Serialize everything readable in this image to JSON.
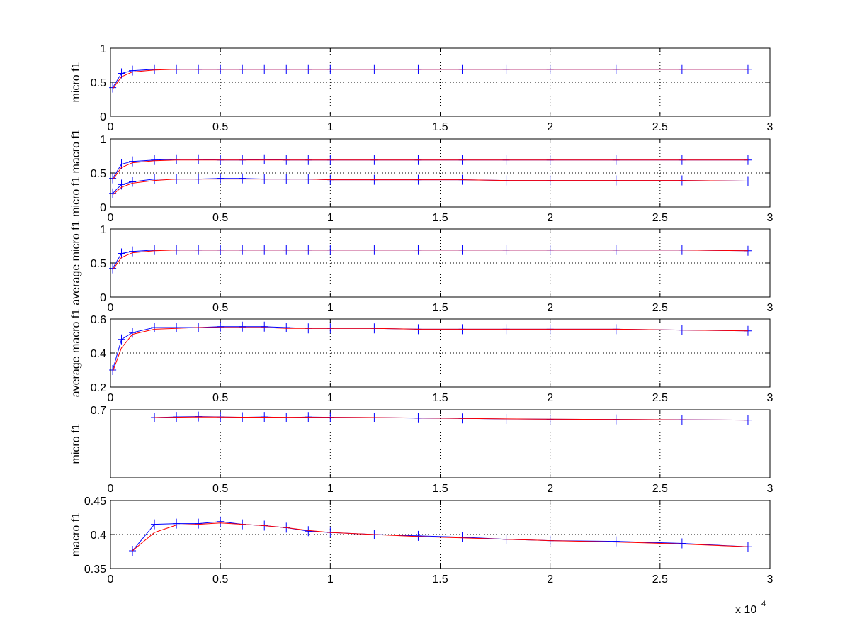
{
  "figure": {
    "x_multiplier_base": "x 10",
    "x_multiplier_exponent": "4"
  },
  "chart_data": [
    {
      "type": "line",
      "ylabel": "micro f1",
      "xlim": [
        0,
        3
      ],
      "ylim": [
        0,
        1
      ],
      "x_ticks": [
        "0",
        "0.5",
        "1",
        "1.5",
        "2",
        "2.5",
        "3"
      ],
      "y_ticks": [
        {
          "v": 0,
          "label": "0"
        },
        {
          "v": 0.5,
          "label": "0.5"
        },
        {
          "v": 1,
          "label": "1"
        }
      ],
      "grid": true,
      "series": [
        {
          "color": "#0000ff",
          "marker": "+",
          "x": [
            0.01,
            0.05,
            0.1,
            0.2,
            0.3,
            0.4,
            0.5,
            0.6,
            0.7,
            0.8,
            0.9,
            1.0,
            1.2,
            1.4,
            1.6,
            1.8,
            2.0,
            2.3,
            2.6,
            2.9
          ],
          "y": [
            0.42,
            0.63,
            0.67,
            0.69,
            0.69,
            0.69,
            0.69,
            0.69,
            0.69,
            0.69,
            0.69,
            0.69,
            0.69,
            0.69,
            0.69,
            0.69,
            0.69,
            0.69,
            0.69,
            0.69
          ]
        },
        {
          "color": "#ff0000",
          "marker": "",
          "x": [
            0.01,
            0.05,
            0.1,
            0.2,
            0.3,
            0.4,
            0.5,
            0.6,
            0.7,
            0.8,
            0.9,
            1.0,
            1.2,
            1.4,
            1.6,
            1.8,
            2.0,
            2.3,
            2.6,
            2.9
          ],
          "y": [
            0.4,
            0.58,
            0.65,
            0.68,
            0.69,
            0.69,
            0.69,
            0.69,
            0.69,
            0.69,
            0.69,
            0.69,
            0.69,
            0.69,
            0.69,
            0.69,
            0.69,
            0.69,
            0.69,
            0.69
          ]
        }
      ]
    },
    {
      "type": "line",
      "ylabel": "micro f1 macro f1",
      "xlim": [
        0,
        3
      ],
      "ylim": [
        0,
        1
      ],
      "x_ticks": [
        "0",
        "0.5",
        "1",
        "1.5",
        "2",
        "2.5",
        "3"
      ],
      "y_ticks": [
        {
          "v": 0,
          "label": "0"
        },
        {
          "v": 0.5,
          "label": "0.5"
        },
        {
          "v": 1,
          "label": "1"
        }
      ],
      "grid": true,
      "series": [
        {
          "color": "#0000ff",
          "marker": "+",
          "x": [
            0.01,
            0.05,
            0.1,
            0.2,
            0.3,
            0.4,
            0.5,
            0.6,
            0.7,
            0.8,
            0.9,
            1.0,
            1.2,
            1.4,
            1.6,
            1.8,
            2.0,
            2.3,
            2.6,
            2.9
          ],
          "y": [
            0.42,
            0.63,
            0.67,
            0.69,
            0.7,
            0.7,
            0.69,
            0.69,
            0.7,
            0.69,
            0.69,
            0.69,
            0.69,
            0.69,
            0.69,
            0.69,
            0.69,
            0.69,
            0.69,
            0.69
          ]
        },
        {
          "color": "#ff0000",
          "marker": "",
          "x": [
            0.01,
            0.05,
            0.1,
            0.2,
            0.3,
            0.4,
            0.5,
            0.6,
            0.7,
            0.8,
            0.9,
            1.0,
            1.2,
            1.4,
            1.6,
            1.8,
            2.0,
            2.3,
            2.6,
            2.9
          ],
          "y": [
            0.4,
            0.58,
            0.65,
            0.68,
            0.69,
            0.69,
            0.69,
            0.69,
            0.69,
            0.69,
            0.69,
            0.69,
            0.69,
            0.69,
            0.69,
            0.69,
            0.69,
            0.69,
            0.69,
            0.69
          ]
        },
        {
          "color": "#0000ff",
          "marker": "+",
          "x": [
            0.01,
            0.05,
            0.1,
            0.2,
            0.3,
            0.4,
            0.5,
            0.6,
            0.7,
            0.8,
            0.9,
            1.0,
            1.2,
            1.4,
            1.6,
            1.8,
            2.0,
            2.3,
            2.6,
            2.9
          ],
          "y": [
            0.2,
            0.33,
            0.37,
            0.41,
            0.41,
            0.41,
            0.42,
            0.42,
            0.41,
            0.41,
            0.41,
            0.4,
            0.4,
            0.4,
            0.4,
            0.39,
            0.39,
            0.39,
            0.39,
            0.38
          ]
        },
        {
          "color": "#ff0000",
          "marker": "",
          "x": [
            0.01,
            0.05,
            0.1,
            0.2,
            0.3,
            0.4,
            0.5,
            0.6,
            0.7,
            0.8,
            0.9,
            1.0,
            1.2,
            1.4,
            1.6,
            1.8,
            2.0,
            2.3,
            2.6,
            2.9
          ],
          "y": [
            0.18,
            0.29,
            0.35,
            0.39,
            0.41,
            0.41,
            0.41,
            0.41,
            0.41,
            0.41,
            0.41,
            0.4,
            0.4,
            0.4,
            0.4,
            0.39,
            0.39,
            0.39,
            0.39,
            0.38
          ]
        }
      ]
    },
    {
      "type": "line",
      "ylabel": "average micro f1",
      "xlim": [
        0,
        3
      ],
      "ylim": [
        0,
        1
      ],
      "x_ticks": [
        "0",
        "0.5",
        "1",
        "1.5",
        "2",
        "2.5",
        "3"
      ],
      "y_ticks": [
        {
          "v": 0,
          "label": "0"
        },
        {
          "v": 0.5,
          "label": "0.5"
        },
        {
          "v": 1,
          "label": "1"
        }
      ],
      "grid": true,
      "series": [
        {
          "color": "#0000ff",
          "marker": "+",
          "x": [
            0.01,
            0.05,
            0.1,
            0.2,
            0.3,
            0.4,
            0.5,
            0.6,
            0.7,
            0.8,
            0.9,
            1.0,
            1.2,
            1.4,
            1.6,
            1.8,
            2.0,
            2.3,
            2.6,
            2.9
          ],
          "y": [
            0.42,
            0.64,
            0.67,
            0.69,
            0.69,
            0.69,
            0.69,
            0.69,
            0.69,
            0.69,
            0.69,
            0.69,
            0.69,
            0.69,
            0.69,
            0.69,
            0.69,
            0.69,
            0.69,
            0.68
          ]
        },
        {
          "color": "#ff0000",
          "marker": "",
          "x": [
            0.01,
            0.05,
            0.1,
            0.2,
            0.3,
            0.4,
            0.5,
            0.6,
            0.7,
            0.8,
            0.9,
            1.0,
            1.2,
            1.4,
            1.6,
            1.8,
            2.0,
            2.3,
            2.6,
            2.9
          ],
          "y": [
            0.4,
            0.58,
            0.65,
            0.68,
            0.69,
            0.69,
            0.69,
            0.69,
            0.69,
            0.69,
            0.69,
            0.69,
            0.69,
            0.69,
            0.69,
            0.69,
            0.69,
            0.69,
            0.69,
            0.68
          ]
        }
      ]
    },
    {
      "type": "line",
      "ylabel": "average macro f1",
      "xlim": [
        0,
        3
      ],
      "ylim": [
        0.2,
        0.6
      ],
      "x_ticks": [
        "0",
        "0.5",
        "1",
        "1.5",
        "2",
        "2.5",
        "3"
      ],
      "y_ticks": [
        {
          "v": 0.2,
          "label": "0.2"
        },
        {
          "v": 0.4,
          "label": "0.4"
        },
        {
          "v": 0.6,
          "label": "0.6"
        }
      ],
      "grid": true,
      "series": [
        {
          "color": "#0000ff",
          "marker": "+",
          "x": [
            0.01,
            0.05,
            0.1,
            0.2,
            0.3,
            0.4,
            0.5,
            0.6,
            0.7,
            0.8,
            0.9,
            1.0,
            1.2,
            1.4,
            1.6,
            1.8,
            2.0,
            2.3,
            2.6,
            2.9
          ],
          "y": [
            0.3,
            0.48,
            0.52,
            0.55,
            0.55,
            0.55,
            0.555,
            0.555,
            0.555,
            0.55,
            0.545,
            0.545,
            0.545,
            0.54,
            0.54,
            0.54,
            0.54,
            0.54,
            0.535,
            0.53
          ]
        },
        {
          "color": "#ff0000",
          "marker": "",
          "x": [
            0.01,
            0.05,
            0.1,
            0.2,
            0.3,
            0.4,
            0.5,
            0.6,
            0.7,
            0.8,
            0.9,
            1.0,
            1.2,
            1.4,
            1.6,
            1.8,
            2.0,
            2.3,
            2.6,
            2.9
          ],
          "y": [
            0.29,
            0.43,
            0.51,
            0.54,
            0.545,
            0.55,
            0.55,
            0.55,
            0.55,
            0.545,
            0.545,
            0.545,
            0.545,
            0.54,
            0.54,
            0.54,
            0.54,
            0.54,
            0.535,
            0.53
          ]
        }
      ]
    },
    {
      "type": "line",
      "ylabel": "micro f1",
      "xlim": [
        0,
        3
      ],
      "ylim": [
        0.6,
        0.7
      ],
      "x_ticks": [
        "0",
        "0.5",
        "1",
        "1.5",
        "2",
        "2.5",
        "3"
      ],
      "y_ticks": [
        {
          "v": 0.7,
          "label": "0.7"
        }
      ],
      "grid": true,
      "series": [
        {
          "color": "#0000ff",
          "marker": "+",
          "x": [
            0.2,
            0.3,
            0.4,
            0.5,
            0.6,
            0.7,
            0.8,
            0.9,
            1.0,
            1.2,
            1.4,
            1.6,
            1.8,
            2.0,
            2.3,
            2.6,
            2.9
          ],
          "y": [
            0.6885,
            0.6895,
            0.69,
            0.6895,
            0.689,
            0.6895,
            0.6885,
            0.6893,
            0.689,
            0.6885,
            0.6878,
            0.6872,
            0.6865,
            0.686,
            0.6858,
            0.6853,
            0.6848
          ]
        },
        {
          "color": "#ff0000",
          "marker": "",
          "x": [
            0.2,
            0.3,
            0.4,
            0.5,
            0.6,
            0.7,
            0.8,
            0.9,
            1.0,
            1.2,
            1.4,
            1.6,
            1.8,
            2.0,
            2.3,
            2.6,
            2.9
          ],
          "y": [
            0.6885,
            0.689,
            0.6895,
            0.6893,
            0.6891,
            0.6891,
            0.689,
            0.689,
            0.6889,
            0.6885,
            0.6879,
            0.6873,
            0.6866,
            0.6861,
            0.6857,
            0.6852,
            0.6848
          ]
        }
      ]
    },
    {
      "type": "line",
      "ylabel": "macro f1",
      "xlim": [
        0,
        3
      ],
      "ylim": [
        0.35,
        0.45
      ],
      "x_ticks": [
        "0",
        "0.5",
        "1",
        "1.5",
        "2",
        "2.5",
        "3"
      ],
      "y_ticks": [
        {
          "v": 0.35,
          "label": "0.35"
        },
        {
          "v": 0.4,
          "label": "0.4"
        },
        {
          "v": 0.45,
          "label": "0.45"
        }
      ],
      "grid": true,
      "x_multiplier": true,
      "series": [
        {
          "color": "#0000ff",
          "marker": "+",
          "x": [
            0.1,
            0.2,
            0.3,
            0.4,
            0.5,
            0.6,
            0.7,
            0.8,
            0.9,
            1.0,
            1.2,
            1.4,
            1.6,
            1.8,
            2.0,
            2.3,
            2.6,
            2.9
          ],
          "y": [
            0.376,
            0.415,
            0.416,
            0.416,
            0.419,
            0.415,
            0.413,
            0.41,
            0.405,
            0.403,
            0.4,
            0.398,
            0.396,
            0.393,
            0.391,
            0.39,
            0.387,
            0.382
          ]
        },
        {
          "color": "#ff0000",
          "marker": "",
          "x": [
            0.1,
            0.2,
            0.3,
            0.4,
            0.5,
            0.6,
            0.7,
            0.8,
            0.9,
            1.0,
            1.2,
            1.4,
            1.6,
            1.8,
            2.0,
            2.3,
            2.6,
            2.9
          ],
          "y": [
            0.376,
            0.403,
            0.414,
            0.415,
            0.417,
            0.415,
            0.413,
            0.41,
            0.406,
            0.403,
            0.4,
            0.397,
            0.395,
            0.393,
            0.391,
            0.389,
            0.386,
            0.382
          ]
        }
      ]
    }
  ]
}
